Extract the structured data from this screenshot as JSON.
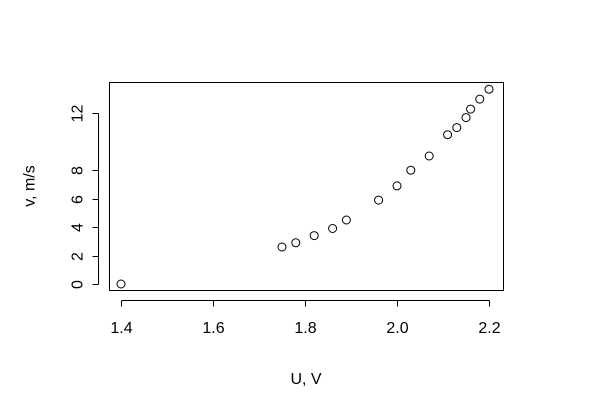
{
  "chart_data": {
    "type": "scatter",
    "title": "",
    "xlabel": "U, V",
    "ylabel": "v, m/s",
    "xlim": [
      1.4,
      2.2
    ],
    "ylim": [
      0,
      13.5
    ],
    "xticks": [
      "1.4",
      "1.6",
      "1.8",
      "2.0",
      "2.2"
    ],
    "yticks": [
      "0",
      "2",
      "4",
      "6",
      "8",
      "12"
    ],
    "grid": false,
    "legend": "none",
    "series": [
      {
        "x": [
          1.4,
          1.75,
          1.78,
          1.82,
          1.86,
          1.89,
          1.96,
          2.0,
          2.03,
          2.07,
          2.11,
          2.13,
          2.15,
          2.16,
          2.18,
          2.2
        ],
        "y": [
          0.0,
          2.6,
          2.9,
          3.4,
          3.9,
          4.5,
          5.9,
          6.9,
          8.0,
          9.0,
          10.5,
          11.0,
          11.7,
          12.3,
          13.0,
          13.7
        ]
      }
    ]
  }
}
